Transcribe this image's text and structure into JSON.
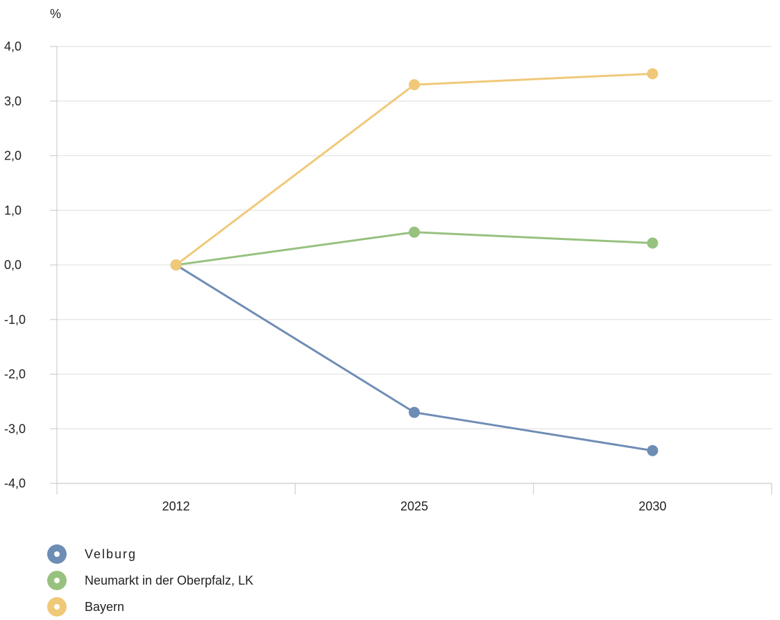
{
  "chart_data": {
    "type": "line",
    "unit_label": "%",
    "categories": [
      "2012",
      "2025",
      "2030"
    ],
    "ylim": [
      -4.0,
      4.0
    ],
    "yticks": [
      4.0,
      3.0,
      2.0,
      1.0,
      0.0,
      -1.0,
      -2.0,
      -3.0,
      -4.0
    ],
    "ytick_labels": [
      "4,0",
      "3,0",
      "2,0",
      "1,0",
      "0,0",
      "-1,0",
      "-2,0",
      "-3,0",
      "-4,0"
    ],
    "grid": true,
    "legend_position": "bottom-left",
    "series": [
      {
        "name": "Velburg",
        "color": "#6e8db5",
        "values": [
          0.0,
          -2.7,
          -3.4
        ]
      },
      {
        "name": "Neumarkt in der Oberpfalz, LK",
        "color": "#97c17f",
        "values": [
          0.0,
          0.6,
          0.4
        ]
      },
      {
        "name": "Bayern",
        "color": "#f0c978",
        "values": [
          0.0,
          3.3,
          3.5
        ]
      }
    ]
  }
}
